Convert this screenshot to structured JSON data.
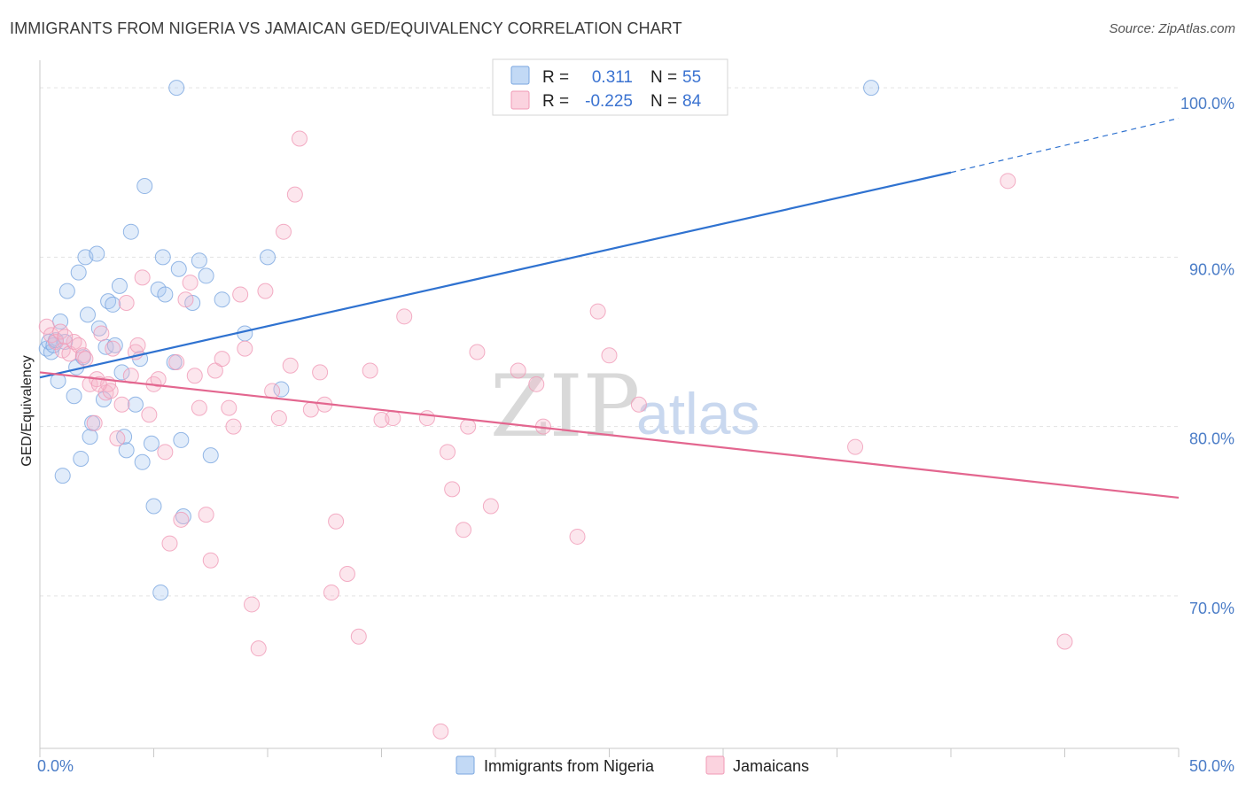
{
  "header": {
    "title": "IMMIGRANTS FROM NIGERIA VS JAMAICAN GED/EQUIVALENCY CORRELATION CHART",
    "source": "Source: ZipAtlas.com"
  },
  "watermark": {
    "zip": "ZIP",
    "atlas": "atlas"
  },
  "legend": {
    "r_label": "R =",
    "n_label": "N =",
    "entries": [
      {
        "r": "0.311",
        "n": "55",
        "color": "#a8c8f0"
      },
      {
        "r": "-0.225",
        "n": "84",
        "color": "#f5b8cb"
      }
    ]
  },
  "chart_data": {
    "type": "scatter",
    "xlabel": "",
    "ylabel": "GED/Equivalency",
    "xlim": [
      0,
      50
    ],
    "ylim": [
      61,
      101
    ],
    "x_tick_labels": [
      {
        "value": 0,
        "label": "0.0%"
      },
      {
        "value": 50,
        "label": "50.0%"
      }
    ],
    "y_tick_labels": [
      {
        "value": 70,
        "label": "70.0%"
      },
      {
        "value": 80,
        "label": "80.0%"
      },
      {
        "value": 90,
        "label": "90.0%"
      },
      {
        "value": 100,
        "label": "100.0%"
      }
    ],
    "grid": "horizontal dashed",
    "legend_position": "top-center",
    "series": [
      {
        "name": "Immigrants from Nigeria",
        "color": "#7aa6e0",
        "trend_color": "#2f72d0",
        "trend": {
          "x_start": 0,
          "y_start": 82.9,
          "x_end": 40,
          "y_end": 95.0,
          "dash_to_x": 50,
          "dash_to_y": 98.2
        },
        "points": [
          [
            0.3,
            84.6
          ],
          [
            0.4,
            85.0
          ],
          [
            0.5,
            84.4
          ],
          [
            0.6,
            84.8
          ],
          [
            0.7,
            85.1
          ],
          [
            0.8,
            82.7
          ],
          [
            0.9,
            86.2
          ],
          [
            1.0,
            77.1
          ],
          [
            1.1,
            85.0
          ],
          [
            1.2,
            88.0
          ],
          [
            1.5,
            81.8
          ],
          [
            1.6,
            83.5
          ],
          [
            1.7,
            89.1
          ],
          [
            1.8,
            78.1
          ],
          [
            1.9,
            84.1
          ],
          [
            2.0,
            90.0
          ],
          [
            2.1,
            86.6
          ],
          [
            2.2,
            79.4
          ],
          [
            2.3,
            80.2
          ],
          [
            2.5,
            90.2
          ],
          [
            2.6,
            85.8
          ],
          [
            2.8,
            81.6
          ],
          [
            2.9,
            84.7
          ],
          [
            3.0,
            87.4
          ],
          [
            3.2,
            87.2
          ],
          [
            3.3,
            84.8
          ],
          [
            3.5,
            88.3
          ],
          [
            3.6,
            83.2
          ],
          [
            3.7,
            79.4
          ],
          [
            3.8,
            78.6
          ],
          [
            4.0,
            91.5
          ],
          [
            4.2,
            81.3
          ],
          [
            4.4,
            84.0
          ],
          [
            4.5,
            77.9
          ],
          [
            4.6,
            94.2
          ],
          [
            4.9,
            79.0
          ],
          [
            5.0,
            75.3
          ],
          [
            5.2,
            88.1
          ],
          [
            5.3,
            70.2
          ],
          [
            5.4,
            90.0
          ],
          [
            5.5,
            87.8
          ],
          [
            5.9,
            83.8
          ],
          [
            6.1,
            89.3
          ],
          [
            6.2,
            79.2
          ],
          [
            6.3,
            74.7
          ],
          [
            6.7,
            87.3
          ],
          [
            7.0,
            89.8
          ],
          [
            7.3,
            88.9
          ],
          [
            7.5,
            78.3
          ],
          [
            8.0,
            87.5
          ],
          [
            9.0,
            85.5
          ],
          [
            10.0,
            90.0
          ],
          [
            10.6,
            82.2
          ],
          [
            6.0,
            100.0
          ],
          [
            36.5,
            100.0
          ]
        ]
      },
      {
        "name": "Jamaicans",
        "color": "#f09ab6",
        "trend_color": "#e3668f",
        "trend": {
          "x_start": 0,
          "y_start": 83.2,
          "x_end": 50,
          "y_end": 75.8
        },
        "points": [
          [
            0.3,
            85.9
          ],
          [
            0.5,
            85.4
          ],
          [
            0.7,
            85.0
          ],
          [
            0.9,
            85.6
          ],
          [
            1.0,
            84.5
          ],
          [
            1.3,
            84.3
          ],
          [
            1.5,
            85.0
          ],
          [
            1.7,
            84.8
          ],
          [
            1.9,
            84.2
          ],
          [
            2.0,
            84.0
          ],
          [
            2.2,
            82.5
          ],
          [
            2.4,
            80.2
          ],
          [
            2.5,
            82.8
          ],
          [
            2.7,
            85.5
          ],
          [
            2.9,
            82.0
          ],
          [
            3.0,
            82.5
          ],
          [
            3.2,
            84.6
          ],
          [
            3.4,
            79.3
          ],
          [
            3.6,
            81.3
          ],
          [
            3.8,
            87.3
          ],
          [
            4.0,
            83.0
          ],
          [
            4.2,
            84.4
          ],
          [
            4.3,
            84.8
          ],
          [
            4.5,
            88.8
          ],
          [
            4.8,
            80.7
          ],
          [
            5.0,
            82.5
          ],
          [
            5.2,
            82.8
          ],
          [
            5.5,
            78.5
          ],
          [
            5.7,
            73.1
          ],
          [
            6.0,
            83.8
          ],
          [
            6.2,
            74.5
          ],
          [
            6.4,
            87.5
          ],
          [
            6.6,
            88.5
          ],
          [
            6.8,
            83.0
          ],
          [
            7.0,
            81.1
          ],
          [
            7.3,
            74.8
          ],
          [
            7.5,
            72.1
          ],
          [
            7.7,
            83.3
          ],
          [
            8.0,
            84.0
          ],
          [
            8.3,
            81.1
          ],
          [
            8.5,
            80.0
          ],
          [
            8.8,
            87.8
          ],
          [
            9.0,
            84.6
          ],
          [
            9.3,
            69.5
          ],
          [
            9.6,
            66.9
          ],
          [
            9.9,
            88.0
          ],
          [
            10.2,
            82.1
          ],
          [
            10.5,
            80.5
          ],
          [
            10.7,
            91.5
          ],
          [
            11.0,
            83.6
          ],
          [
            11.2,
            93.7
          ],
          [
            11.4,
            97.0
          ],
          [
            11.9,
            81.0
          ],
          [
            12.3,
            83.2
          ],
          [
            12.5,
            81.3
          ],
          [
            12.8,
            70.2
          ],
          [
            13.0,
            74.4
          ],
          [
            13.5,
            71.3
          ],
          [
            14.0,
            67.6
          ],
          [
            14.5,
            83.3
          ],
          [
            15.0,
            80.4
          ],
          [
            15.5,
            80.5
          ],
          [
            16.0,
            86.5
          ],
          [
            17.0,
            80.5
          ],
          [
            17.6,
            62.0
          ],
          [
            17.9,
            78.5
          ],
          [
            18.1,
            76.3
          ],
          [
            18.6,
            73.9
          ],
          [
            18.8,
            80.0
          ],
          [
            19.2,
            84.4
          ],
          [
            19.8,
            75.3
          ],
          [
            21.0,
            83.3
          ],
          [
            21.8,
            82.5
          ],
          [
            22.1,
            80.0
          ],
          [
            23.6,
            73.5
          ],
          [
            24.5,
            86.8
          ],
          [
            25.0,
            84.2
          ],
          [
            26.3,
            81.3
          ],
          [
            35.8,
            78.8
          ],
          [
            42.5,
            94.5
          ],
          [
            45.0,
            67.3
          ],
          [
            1.1,
            85.3
          ],
          [
            3.1,
            82.1
          ],
          [
            2.6,
            82.5
          ]
        ]
      }
    ]
  }
}
